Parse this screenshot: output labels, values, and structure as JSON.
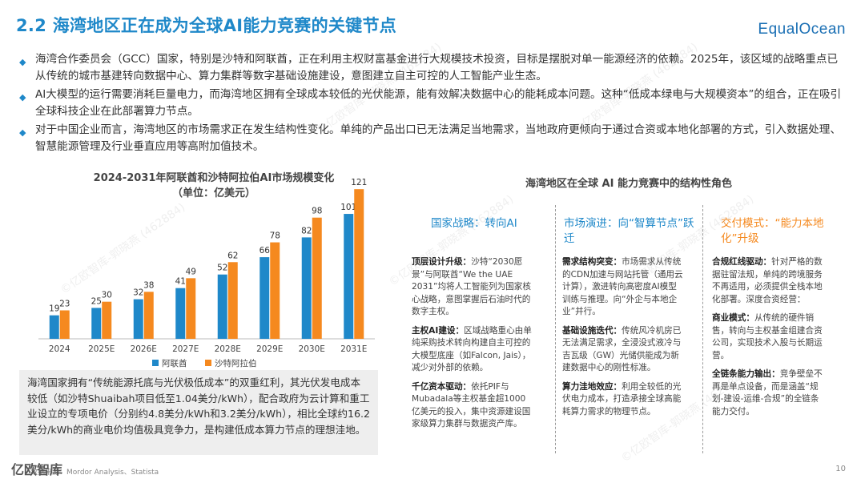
{
  "header": {
    "title": "2.2 海湾地区正在成为全球AI能力竞赛的关键节点",
    "logo": "EqualOcean"
  },
  "bullets": [
    "海湾合作委员会（GCC）国家，特别是沙特和阿联酋，正在利用主权财富基金进行大规模技术投资，目标是摆脱对单一能源经济的依赖。2025年，该区域的战略重点已从传统的城市基建转向数据中心、算力集群等数字基础设施建设，意图建立自主可控的人工智能产业生态。",
    "AI大模型的运行需要消耗巨量电力，而海湾地区拥有全球成本较低的光伏能源，能有效解决数据中心的能耗成本问题。这种“低成本绿电与大规模资本”的组合，正在吸引全球科技企业在此部署算力节点。",
    "对于中国企业而言，海湾地区的市场需求正在发生结构性变化。单纯的产品出口已无法满足当地需求，当地政府更倾向于通过合资或本地化部署的方式，引入数据处理、智慧能源管理及行业垂直应用等高附加值技术。"
  ],
  "chart_data": {
    "type": "bar",
    "title": "2024-2031年阿联酋和沙特阿拉伯AI市场规模变化",
    "subtitle": "（单位：亿美元）",
    "categories": [
      "2024",
      "2025E",
      "2026E",
      "2027E",
      "2028E",
      "2029E",
      "2030E",
      "2031E"
    ],
    "series": [
      {
        "name": "阿联酋",
        "color": "#1f88c9",
        "values": [
          19,
          25,
          32,
          41,
          52,
          66,
          82,
          101
        ]
      },
      {
        "name": "沙特阿拉伯",
        "color": "#f5891f",
        "values": [
          23,
          30,
          38,
          49,
          62,
          78,
          98,
          121
        ]
      }
    ],
    "ylim": [
      0,
      125
    ],
    "legend": "bottom",
    "grid": false
  },
  "note": "海湾国家拥有“传统能源托底与光伏极低成本”的双重红利，其光伏发电成本较低（如沙特Shuaibah项目低至1.04美分/kWh），配合政府为云计算和重工业设立的专项电价（分别约4.8美分/kWh和3.2美分/kWh），相比全球约16.2美分/kWh的商业电价均值极具竞争力，是构建低成本算力节点的理想洼地。",
  "right": {
    "title": "海湾地区在全球 AI 能力竞赛中的结构性角色",
    "columns": [
      {
        "heading": "国家战略：转向AI",
        "heading_color": "#1f88c9",
        "items": [
          {
            "label": "顶层设计升级：",
            "text": "沙特“2030愿景”与阿联酋“We the UAE 2031”均将人工智能列为国家核心战略，意图掌握后石油时代的数字主权。"
          },
          {
            "label": "主权AI建设：",
            "text": "区域战略重心由单纯采购技术转向构建自主可控的大模型底座（如Falcon, Jais），减少对外部的依赖。"
          },
          {
            "label": "千亿资本驱动：",
            "text": "依托PIF与Mubadala等主权基金超1000亿美元的投入，集中资源建设国家级算力集群与数据资产库。"
          }
        ]
      },
      {
        "heading": "市场演进：向“智算节点”跃迁",
        "heading_color": "#1f88c9",
        "items": [
          {
            "label": "需求结构突变：",
            "text": "市场需求从传统的CDN加速与网站托管（通用云计算），激进转向高密度AI模型训练与推理。向“外企与本地企业”并行。"
          },
          {
            "label": "基础设施迭代：",
            "text": "传统风冷机房已无法满足需求，全浸没式液冷与吉瓦级（GW）光储供能成为新建数据中心的刚性标准。"
          },
          {
            "label": "算力洼地效应：",
            "text": "利用全较低的光伏电力成本，打造承接全球高能耗算力需求的物理节点。"
          }
        ]
      },
      {
        "heading": "交付模式：“能力本地化”升级",
        "heading_color": "#f5891f",
        "items": [
          {
            "label": "合规红线驱动：",
            "text": "针对严格的数据驻留法规，单纯的跨境服务不再适用，必须提供全栈本地化部署。深度合资经营："
          },
          {
            "label": "商业模式：",
            "text": "从传统的硬件销售，转向与主权基金组建合资公司，实现技术入股与长期运营。"
          },
          {
            "label": "全链条能力输出：",
            "text": "竞争壁垒不再是单点设备，而是涵盖“规划-建设-运维-合规”的全链条能力交付。"
          }
        ]
      }
    ]
  },
  "footer": {
    "source": "数据来源：Mordor Analysis、Statista",
    "page": "10",
    "corner_mark": "亿欧智库"
  },
  "watermark": "©亿欧智库-郭晓燕 (462884)"
}
